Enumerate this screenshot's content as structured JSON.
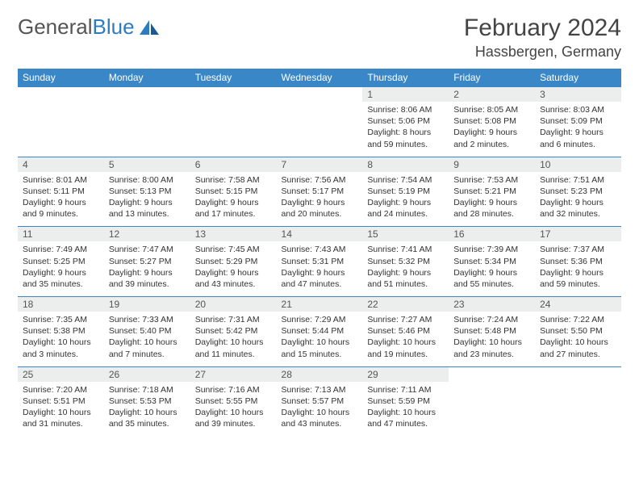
{
  "logo": {
    "part1": "General",
    "part2": "Blue"
  },
  "header": {
    "month": "February 2024",
    "location": "Hassbergen, Germany"
  },
  "colors": {
    "header_bg": "#3a87c8",
    "header_text": "#ffffff",
    "daynum_bg": "#eceded",
    "border": "#3a87c8",
    "text": "#333333",
    "logo_gray": "#555555",
    "logo_blue": "#2d7bc0"
  },
  "day_headers": [
    "Sunday",
    "Monday",
    "Tuesday",
    "Wednesday",
    "Thursday",
    "Friday",
    "Saturday"
  ],
  "weeks": [
    [
      {
        "empty": true
      },
      {
        "empty": true
      },
      {
        "empty": true
      },
      {
        "empty": true
      },
      {
        "num": "1",
        "sr": "Sunrise: 8:06 AM",
        "ss": "Sunset: 5:06 PM",
        "dl1": "Daylight: 8 hours",
        "dl2": "and 59 minutes."
      },
      {
        "num": "2",
        "sr": "Sunrise: 8:05 AM",
        "ss": "Sunset: 5:08 PM",
        "dl1": "Daylight: 9 hours",
        "dl2": "and 2 minutes."
      },
      {
        "num": "3",
        "sr": "Sunrise: 8:03 AM",
        "ss": "Sunset: 5:09 PM",
        "dl1": "Daylight: 9 hours",
        "dl2": "and 6 minutes."
      }
    ],
    [
      {
        "num": "4",
        "sr": "Sunrise: 8:01 AM",
        "ss": "Sunset: 5:11 PM",
        "dl1": "Daylight: 9 hours",
        "dl2": "and 9 minutes."
      },
      {
        "num": "5",
        "sr": "Sunrise: 8:00 AM",
        "ss": "Sunset: 5:13 PM",
        "dl1": "Daylight: 9 hours",
        "dl2": "and 13 minutes."
      },
      {
        "num": "6",
        "sr": "Sunrise: 7:58 AM",
        "ss": "Sunset: 5:15 PM",
        "dl1": "Daylight: 9 hours",
        "dl2": "and 17 minutes."
      },
      {
        "num": "7",
        "sr": "Sunrise: 7:56 AM",
        "ss": "Sunset: 5:17 PM",
        "dl1": "Daylight: 9 hours",
        "dl2": "and 20 minutes."
      },
      {
        "num": "8",
        "sr": "Sunrise: 7:54 AM",
        "ss": "Sunset: 5:19 PM",
        "dl1": "Daylight: 9 hours",
        "dl2": "and 24 minutes."
      },
      {
        "num": "9",
        "sr": "Sunrise: 7:53 AM",
        "ss": "Sunset: 5:21 PM",
        "dl1": "Daylight: 9 hours",
        "dl2": "and 28 minutes."
      },
      {
        "num": "10",
        "sr": "Sunrise: 7:51 AM",
        "ss": "Sunset: 5:23 PM",
        "dl1": "Daylight: 9 hours",
        "dl2": "and 32 minutes."
      }
    ],
    [
      {
        "num": "11",
        "sr": "Sunrise: 7:49 AM",
        "ss": "Sunset: 5:25 PM",
        "dl1": "Daylight: 9 hours",
        "dl2": "and 35 minutes."
      },
      {
        "num": "12",
        "sr": "Sunrise: 7:47 AM",
        "ss": "Sunset: 5:27 PM",
        "dl1": "Daylight: 9 hours",
        "dl2": "and 39 minutes."
      },
      {
        "num": "13",
        "sr": "Sunrise: 7:45 AM",
        "ss": "Sunset: 5:29 PM",
        "dl1": "Daylight: 9 hours",
        "dl2": "and 43 minutes."
      },
      {
        "num": "14",
        "sr": "Sunrise: 7:43 AM",
        "ss": "Sunset: 5:31 PM",
        "dl1": "Daylight: 9 hours",
        "dl2": "and 47 minutes."
      },
      {
        "num": "15",
        "sr": "Sunrise: 7:41 AM",
        "ss": "Sunset: 5:32 PM",
        "dl1": "Daylight: 9 hours",
        "dl2": "and 51 minutes."
      },
      {
        "num": "16",
        "sr": "Sunrise: 7:39 AM",
        "ss": "Sunset: 5:34 PM",
        "dl1": "Daylight: 9 hours",
        "dl2": "and 55 minutes."
      },
      {
        "num": "17",
        "sr": "Sunrise: 7:37 AM",
        "ss": "Sunset: 5:36 PM",
        "dl1": "Daylight: 9 hours",
        "dl2": "and 59 minutes."
      }
    ],
    [
      {
        "num": "18",
        "sr": "Sunrise: 7:35 AM",
        "ss": "Sunset: 5:38 PM",
        "dl1": "Daylight: 10 hours",
        "dl2": "and 3 minutes."
      },
      {
        "num": "19",
        "sr": "Sunrise: 7:33 AM",
        "ss": "Sunset: 5:40 PM",
        "dl1": "Daylight: 10 hours",
        "dl2": "and 7 minutes."
      },
      {
        "num": "20",
        "sr": "Sunrise: 7:31 AM",
        "ss": "Sunset: 5:42 PM",
        "dl1": "Daylight: 10 hours",
        "dl2": "and 11 minutes."
      },
      {
        "num": "21",
        "sr": "Sunrise: 7:29 AM",
        "ss": "Sunset: 5:44 PM",
        "dl1": "Daylight: 10 hours",
        "dl2": "and 15 minutes."
      },
      {
        "num": "22",
        "sr": "Sunrise: 7:27 AM",
        "ss": "Sunset: 5:46 PM",
        "dl1": "Daylight: 10 hours",
        "dl2": "and 19 minutes."
      },
      {
        "num": "23",
        "sr": "Sunrise: 7:24 AM",
        "ss": "Sunset: 5:48 PM",
        "dl1": "Daylight: 10 hours",
        "dl2": "and 23 minutes."
      },
      {
        "num": "24",
        "sr": "Sunrise: 7:22 AM",
        "ss": "Sunset: 5:50 PM",
        "dl1": "Daylight: 10 hours",
        "dl2": "and 27 minutes."
      }
    ],
    [
      {
        "num": "25",
        "sr": "Sunrise: 7:20 AM",
        "ss": "Sunset: 5:51 PM",
        "dl1": "Daylight: 10 hours",
        "dl2": "and 31 minutes."
      },
      {
        "num": "26",
        "sr": "Sunrise: 7:18 AM",
        "ss": "Sunset: 5:53 PM",
        "dl1": "Daylight: 10 hours",
        "dl2": "and 35 minutes."
      },
      {
        "num": "27",
        "sr": "Sunrise: 7:16 AM",
        "ss": "Sunset: 5:55 PM",
        "dl1": "Daylight: 10 hours",
        "dl2": "and 39 minutes."
      },
      {
        "num": "28",
        "sr": "Sunrise: 7:13 AM",
        "ss": "Sunset: 5:57 PM",
        "dl1": "Daylight: 10 hours",
        "dl2": "and 43 minutes."
      },
      {
        "num": "29",
        "sr": "Sunrise: 7:11 AM",
        "ss": "Sunset: 5:59 PM",
        "dl1": "Daylight: 10 hours",
        "dl2": "and 47 minutes."
      },
      {
        "empty": true
      },
      {
        "empty": true
      }
    ]
  ]
}
